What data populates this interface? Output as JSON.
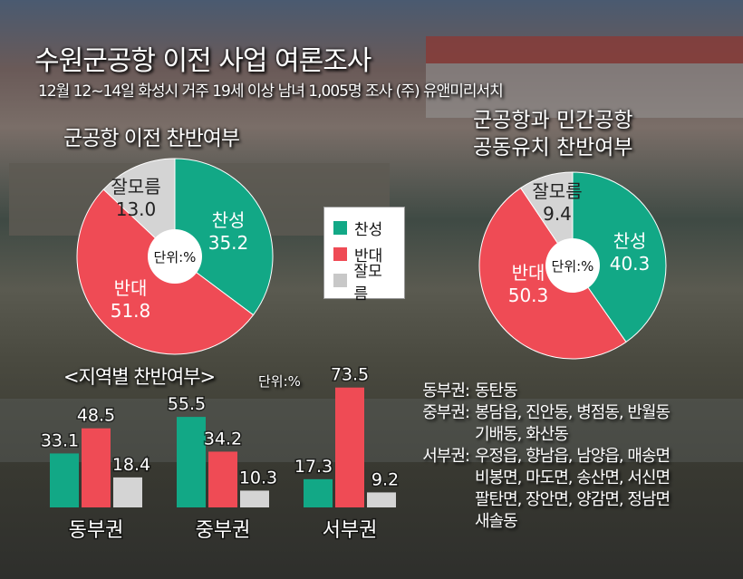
{
  "title": "수원군공항 이전 사업 여론조사",
  "subtitle": "12월 12~14일 화성시 거주 19세 이상 남녀 1,005명 조사 (주) 유앤미리서치",
  "colors": {
    "찬성": "#12a886",
    "반대": "#ef4b55",
    "잘모름": "#d4d4d4"
  },
  "legend": {
    "items": [
      "찬성",
      "반대",
      "잘모름"
    ]
  },
  "chart_data": [
    {
      "type": "pie",
      "title": "군공항 이전 찬반여부",
      "unit": "단위:%",
      "labels": [
        "찬성",
        "반대",
        "잘모름"
      ],
      "values": [
        35.2,
        51.8,
        13.0
      ],
      "value_labels": [
        "35.2",
        "51.8",
        "13.0"
      ]
    },
    {
      "type": "pie",
      "title_lines": [
        "군공항과 민간공항",
        "공동유치 찬반여부"
      ],
      "unit": "단위:%",
      "labels": [
        "찬성",
        "반대",
        "잘모름"
      ],
      "values": [
        40.3,
        50.3,
        9.4
      ],
      "value_labels": [
        "40.3",
        "50.3",
        "9.4"
      ]
    },
    {
      "type": "bar",
      "title": "<지역별 찬반여부>",
      "unit": "단위:%",
      "categories": [
        "동부권",
        "중부권",
        "서부권"
      ],
      "series": [
        {
          "name": "찬성",
          "values": [
            33.1,
            55.5,
            17.3
          ],
          "labels": [
            "33.1",
            "55.5",
            "17.3"
          ]
        },
        {
          "name": "반대",
          "values": [
            48.5,
            34.2,
            73.5
          ],
          "labels": [
            "48.5",
            "34.2",
            "73.5"
          ]
        },
        {
          "name": "잘모름",
          "values": [
            18.4,
            10.3,
            9.2
          ],
          "labels": [
            "18.4",
            "10.3",
            "9.2"
          ]
        }
      ]
    }
  ],
  "regions": [
    {
      "key": "동부권:",
      "lines": [
        "동탄동"
      ]
    },
    {
      "key": "중부권:",
      "lines": [
        "봉담읍, 진안동, 병점동, 반월동",
        "기배동, 화산동"
      ]
    },
    {
      "key": "서부권:",
      "lines": [
        "우정읍, 향남읍, 남양읍, 매송면",
        "비봉면, 마도면, 송산면, 서신면",
        "팔탄면, 장안면, 양감면, 정남면",
        "새솔동"
      ]
    }
  ]
}
